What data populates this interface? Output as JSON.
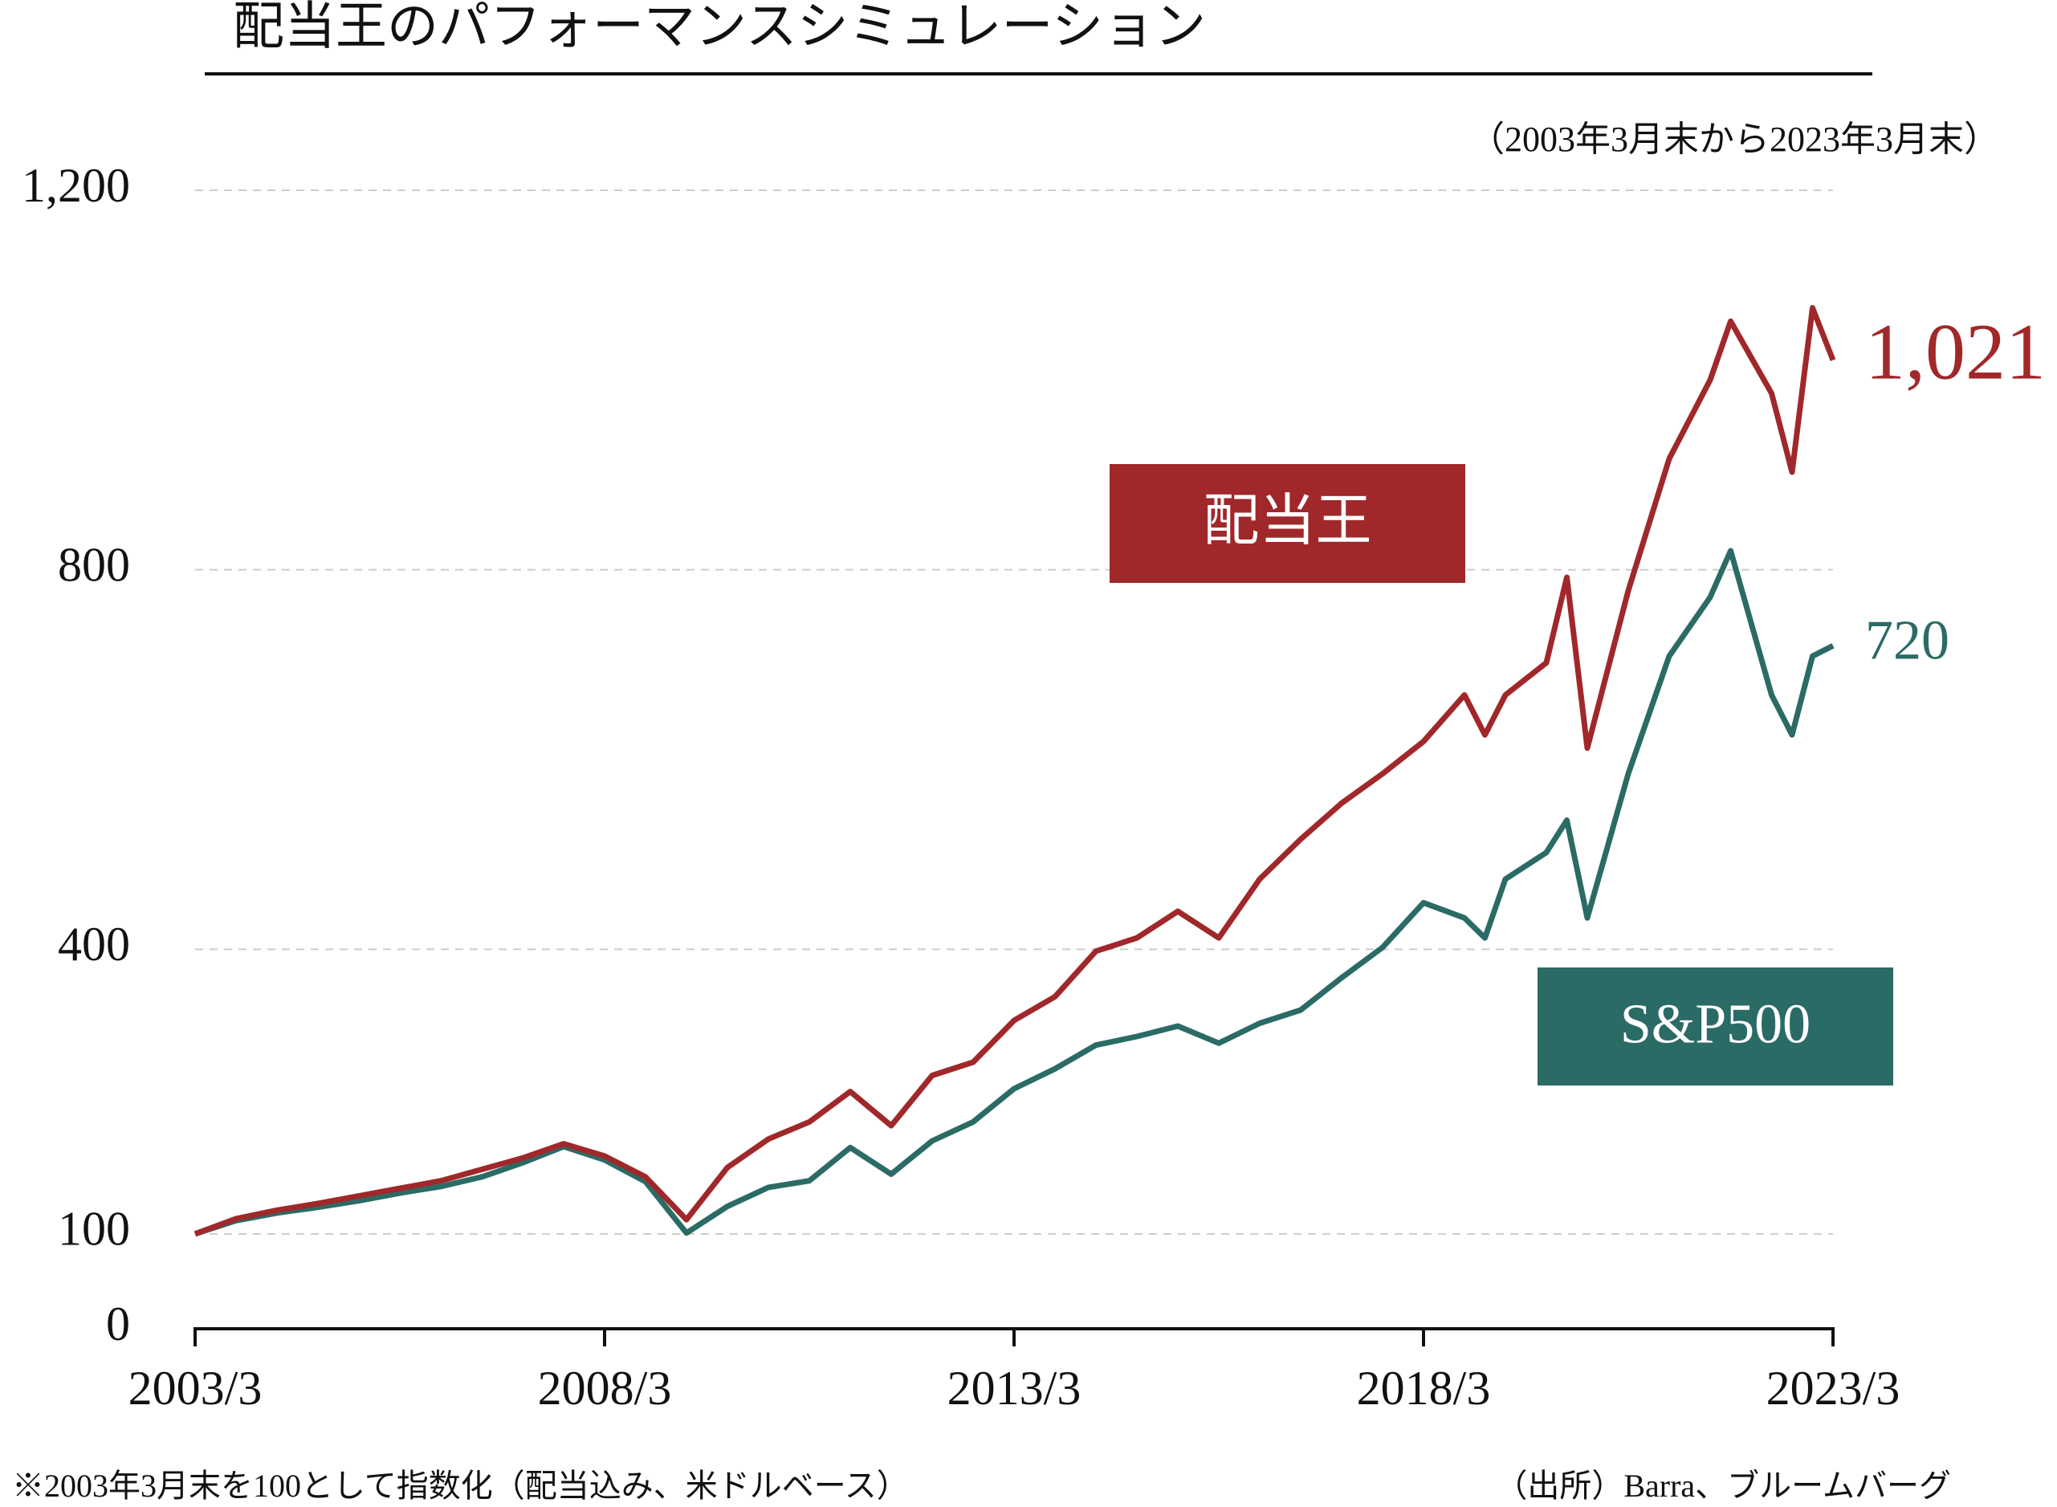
{
  "chart_data": {
    "type": "line",
    "title": "配当王のパフォーマンスシミュレーション",
    "subtitle": "（2003年3月末から2023年3月末）",
    "note": "※2003年3月末を100として指数化（配当込み、米ドルベース）",
    "source": "（出所）Barra、ブルームバーグ",
    "x": [
      2003.25,
      2003.75,
      2004.25,
      2004.75,
      2005.25,
      2005.75,
      2006.25,
      2006.75,
      2007.25,
      2007.75,
      2008.25,
      2008.75,
      2009.25,
      2009.75,
      2010.25,
      2010.75,
      2011.25,
      2011.75,
      2012.25,
      2012.75,
      2013.25,
      2013.75,
      2014.25,
      2014.75,
      2015.25,
      2015.75,
      2016.25,
      2016.75,
      2017.25,
      2017.75,
      2018.25,
      2018.75,
      2019.0,
      2019.25,
      2019.75,
      2020.0,
      2020.25,
      2020.75,
      2021.25,
      2021.75,
      2022.0,
      2022.5,
      2022.75,
      2023.0,
      2023.25
    ],
    "series": [
      {
        "name": "配当王",
        "color": "#a0282a",
        "values": [
          100,
          116,
          125,
          132,
          140,
          148,
          156,
          168,
          180,
          195,
          182,
          160,
          115,
          170,
          200,
          218,
          250,
          214,
          267,
          281,
          325,
          350,
          398,
          412,
          440,
          412,
          474,
          516,
          554,
          585,
          619,
          668,
          626,
          668,
          702,
          792,
          612,
          778,
          917,
          1000,
          1062,
          986,
          903,
          1076,
          1021
        ],
        "end_label": {
          "value": 1021,
          "label": "1,021"
        }
      },
      {
        "name": "S&P500",
        "color": "#2b6b66",
        "values": [
          100,
          114,
          122,
          128,
          135,
          143,
          150,
          160,
          175,
          192,
          178,
          155,
          101,
          129,
          149,
          156,
          191,
          163,
          198,
          218,
          253,
          274,
          299,
          308,
          319,
          301,
          322,
          336,
          370,
          402,
          449,
          433,
          412,
          474,
          502,
          536,
          433,
          585,
          709,
          771,
          820,
          668,
          626,
          709,
          720
        ],
        "end_label": {
          "value": 720,
          "label": "720"
        }
      }
    ],
    "xlim": [
      2003.25,
      2023.25
    ],
    "xticks": [
      {
        "value": 2003.25,
        "label": "2003/3"
      },
      {
        "value": 2008.25,
        "label": "2008/3"
      },
      {
        "value": 2013.25,
        "label": "2013/3"
      },
      {
        "value": 2018.25,
        "label": "2018/3"
      },
      {
        "value": 2023.25,
        "label": "2023/3"
      }
    ],
    "ylim": [
      0,
      1200
    ],
    "yticks": [
      0,
      100,
      400,
      800,
      {
        "value": 1200,
        "label": "1,200"
      }
    ],
    "grid": true
  }
}
